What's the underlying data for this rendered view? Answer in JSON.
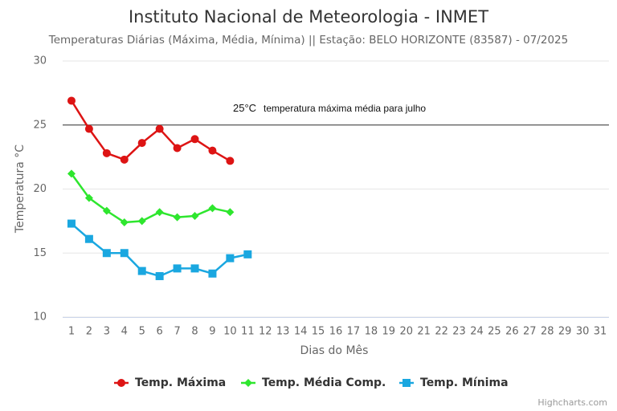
{
  "chart_data": {
    "type": "line",
    "title": "Instituto Nacional de Meteorologia - INMET",
    "subtitle": "Temperaturas Diárias (Máxima, Média, Mínima) || Estação: BELO HORIZONTE (83587) - 07/2025",
    "x_label": "Dias do Mês",
    "y_label": "Temperatura °C",
    "categories": [
      1,
      2,
      3,
      4,
      5,
      6,
      7,
      8,
      9,
      10,
      11,
      12,
      13,
      14,
      15,
      16,
      17,
      18,
      19,
      20,
      21,
      22,
      23,
      24,
      25,
      26,
      27,
      28,
      29,
      30,
      31
    ],
    "ylim": [
      10,
      30
    ],
    "yticks": [
      10,
      15,
      20,
      25,
      30
    ],
    "grid": true,
    "plot_line": {
      "value": 25,
      "label": "25°C",
      "text": "temperatura máxima média para julho"
    },
    "series": [
      {
        "name": "Temp. Máxima",
        "color": "#dd1414",
        "marker": "circle",
        "values": [
          26.9,
          24.7,
          22.8,
          22.3,
          23.6,
          24.7,
          23.2,
          23.9,
          23.0,
          22.2,
          null,
          null,
          null,
          null,
          null,
          null,
          null,
          null,
          null,
          null,
          null,
          null,
          null,
          null,
          null,
          null,
          null,
          null,
          null,
          null,
          null
        ]
      },
      {
        "name": "Temp. Média Comp.",
        "color": "#2ee62e",
        "marker": "diamond",
        "values": [
          21.2,
          19.3,
          18.3,
          17.4,
          17.5,
          18.2,
          17.8,
          17.9,
          18.5,
          18.2,
          null,
          null,
          null,
          null,
          null,
          null,
          null,
          null,
          null,
          null,
          null,
          null,
          null,
          null,
          null,
          null,
          null,
          null,
          null,
          null,
          null
        ]
      },
      {
        "name": "Temp. Mínima",
        "color": "#1aa7e0",
        "marker": "square",
        "values": [
          17.3,
          16.1,
          15.0,
          15.0,
          13.6,
          13.2,
          13.8,
          13.8,
          13.4,
          14.6,
          14.9,
          null,
          null,
          null,
          null,
          null,
          null,
          null,
          null,
          null,
          null,
          null,
          null,
          null,
          null,
          null,
          null,
          null,
          null,
          null,
          null
        ]
      }
    ],
    "credits": "Highcharts.com"
  }
}
